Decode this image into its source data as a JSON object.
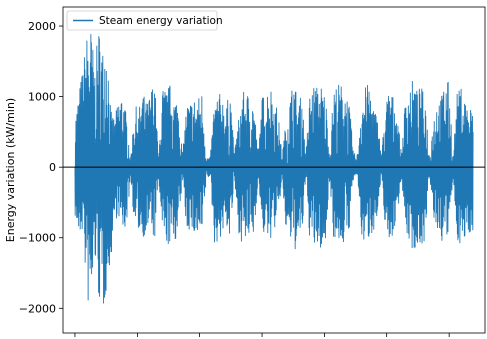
{
  "chart_data": {
    "type": "line",
    "title": "",
    "xlabel": "",
    "ylabel": "Energy variation (kW/min)",
    "ylim": [
      -2350,
      2270
    ],
    "xlim": [
      -0.03,
      1.03
    ],
    "yticks": [
      -2000,
      -1000,
      0,
      1000,
      2000
    ],
    "ytick_labels": [
      "−2000",
      "−1000",
      "0",
      "1000",
      "2000"
    ],
    "xticks": [
      0.0,
      0.157,
      0.313,
      0.47,
      0.627,
      0.783,
      0.94
    ],
    "xtick_labels": [
      "",
      "",
      "",
      "",
      "",
      "",
      ""
    ],
    "grid": false,
    "legend_position": "upper-left",
    "zero_line": 0,
    "series": [
      {
        "name": "Steam energy variation",
        "color": "#1f77b4",
        "envelope": {
          "x": [
            0.0,
            0.01,
            0.02,
            0.03,
            0.04,
            0.05,
            0.06,
            0.07,
            0.08,
            0.09,
            0.1,
            0.11,
            0.12,
            0.13,
            0.14,
            0.15,
            0.16,
            0.17,
            0.18,
            0.19,
            0.2,
            0.21,
            0.22,
            0.23,
            0.24,
            0.25,
            0.26,
            0.27,
            0.28,
            0.29,
            0.3,
            0.31,
            0.32,
            0.33,
            0.34,
            0.35,
            0.36,
            0.37,
            0.38,
            0.39,
            0.4,
            0.41,
            0.42,
            0.43,
            0.44,
            0.45,
            0.46,
            0.47,
            0.48,
            0.49,
            0.5,
            0.51,
            0.52,
            0.53,
            0.54,
            0.55,
            0.56,
            0.57,
            0.58,
            0.59,
            0.6,
            0.61,
            0.62,
            0.63,
            0.64,
            0.65,
            0.66,
            0.67,
            0.68,
            0.69,
            0.7,
            0.71,
            0.72,
            0.73,
            0.74,
            0.75,
            0.76,
            0.77,
            0.78,
            0.79,
            0.8,
            0.81,
            0.82,
            0.83,
            0.84,
            0.85,
            0.86,
            0.87,
            0.88,
            0.89,
            0.9,
            0.91,
            0.92,
            0.93,
            0.94,
            0.95,
            0.96,
            0.97,
            0.98,
            0.99,
            1.0
          ],
          "upper": [
            700,
            1080,
            1450,
            1900,
            2000,
            1450,
            2000,
            1700,
            1950,
            800,
            700,
            1000,
            1100,
            700,
            150,
            900,
            800,
            1100,
            900,
            1080,
            1300,
            150,
            1150,
            1100,
            1200,
            1000,
            1000,
            150,
            900,
            950,
            1000,
            1000,
            1100,
            150,
            150,
            950,
            1050,
            1050,
            850,
            1150,
            200,
            650,
            1050,
            1100,
            1000,
            950,
            180,
            1000,
            1100,
            1200,
            1000,
            800,
            180,
            650,
            1000,
            1300,
            900,
            1050,
            200,
            1050,
            1180,
            1150,
            1180,
            1000,
            200,
            1150,
            1200,
            1180,
            1150,
            850,
            200,
            200,
            1050,
            1150,
            1200,
            900,
            700,
            180,
            900,
            1150,
            1000,
            800,
            180,
            1000,
            1200,
            1250,
            1100,
            1150,
            1000,
            200,
            700,
            1000,
            1000,
            1280,
            1200,
            180,
            1050,
            1150,
            1000,
            850,
            900
          ],
          "lower": [
            -700,
            -1050,
            -900,
            -1900,
            -2150,
            -1300,
            -1900,
            -2150,
            -1700,
            -1350,
            -750,
            -700,
            -1000,
            -800,
            -150,
            -900,
            -900,
            -1000,
            -950,
            -800,
            -1100,
            -150,
            -1050,
            -1100,
            -1150,
            -1050,
            -1000,
            -150,
            -900,
            -900,
            -1000,
            -1050,
            -1050,
            -150,
            -150,
            -1100,
            -1050,
            -1000,
            -800,
            -1100,
            -150,
            -900,
            -1100,
            -1100,
            -1000,
            -1000,
            -150,
            -900,
            -1050,
            -1050,
            -900,
            -800,
            -150,
            -950,
            -1050,
            -1200,
            -1150,
            -1050,
            -150,
            -1050,
            -1200,
            -1150,
            -1200,
            -1100,
            -150,
            -1050,
            -1050,
            -1100,
            -1100,
            -850,
            -150,
            -150,
            -1000,
            -1150,
            -1000,
            -900,
            -750,
            -150,
            -900,
            -1100,
            -950,
            -700,
            -150,
            -900,
            -1100,
            -1200,
            -1150,
            -1100,
            -1050,
            -150,
            -700,
            -950,
            -1050,
            -1150,
            -900,
            -150,
            -1050,
            -1100,
            -1100,
            -950,
            -900
          ]
        }
      }
    ]
  }
}
